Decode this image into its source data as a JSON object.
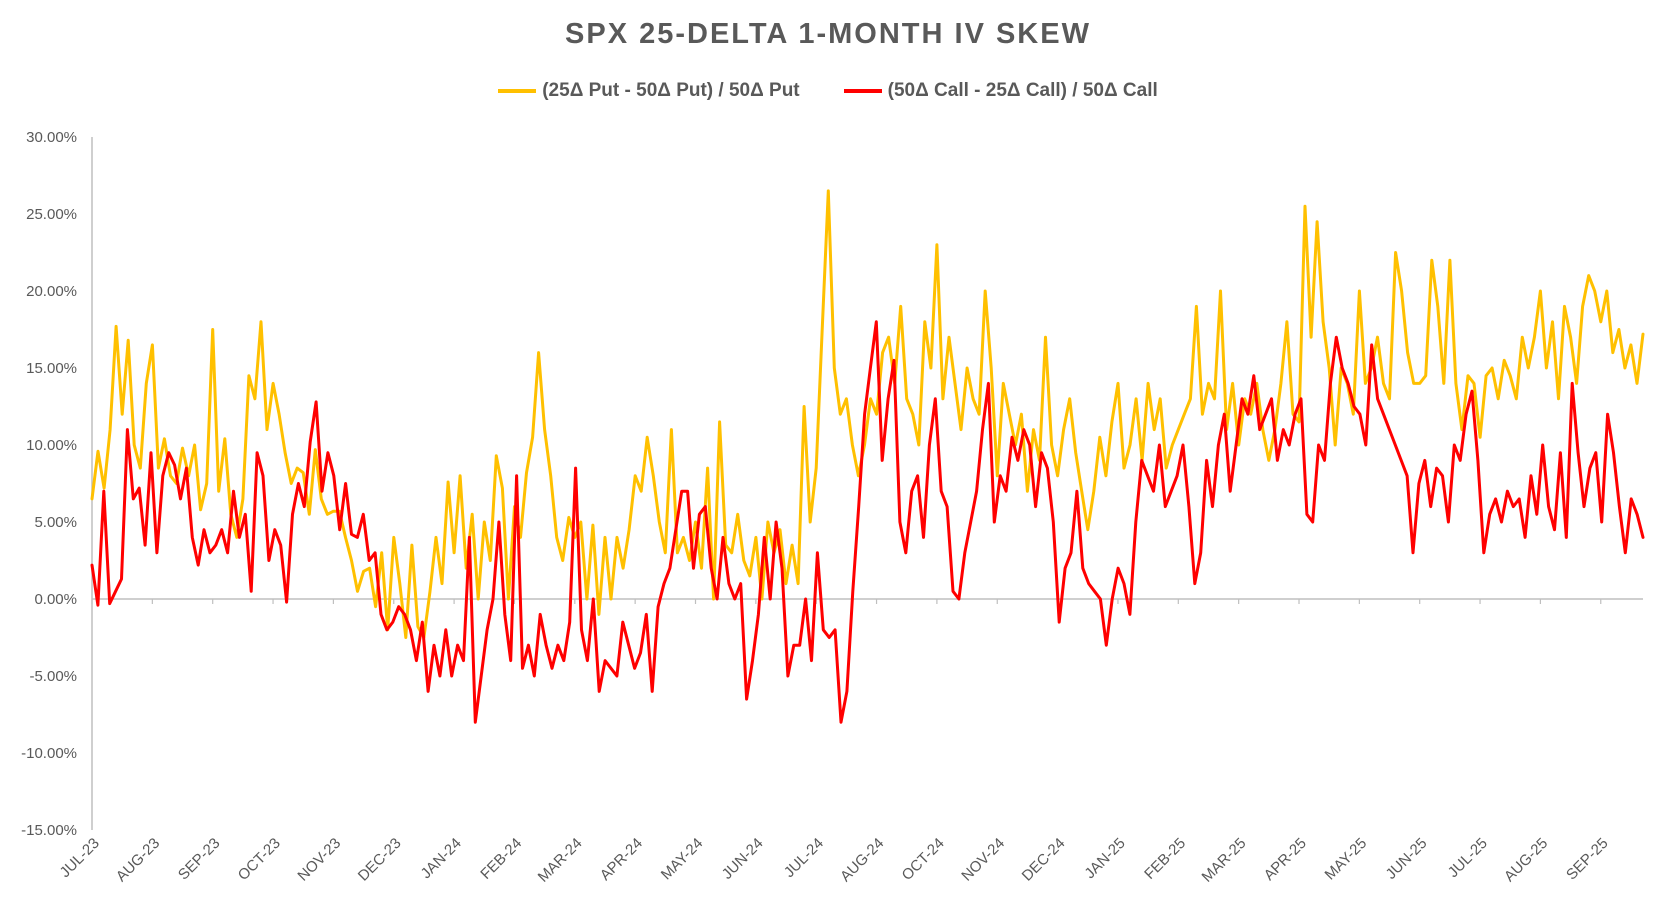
{
  "chart_data": {
    "type": "line",
    "title": "SPX 25-DELTA 1-MONTH IV SKEW",
    "xlabel": "",
    "ylabel": "",
    "ylim": [
      -0.15,
      0.3
    ],
    "yticks": [
      "30.00%",
      "25.00%",
      "20.00%",
      "15.00%",
      "10.00%",
      "5.00%",
      "0.00%",
      "-5.00%",
      "-10.00%",
      "-15.00%"
    ],
    "xticks": [
      "JUL-23",
      "AUG-23",
      "SEP-23",
      "OCT-23",
      "NOV-23",
      "DEC-23",
      "JAN-24",
      "FEB-24",
      "MAR-24",
      "APR-24",
      "MAY-24",
      "JUN-24",
      "JUL-24",
      "AUG-24",
      "OCT-24",
      "NOV-24",
      "DEC-24",
      "JAN-25",
      "FEB-25",
      "MAR-25",
      "APR-25",
      "MAY-25",
      "JUN-25",
      "JUL-25",
      "AUG-25",
      "SEP-25"
    ],
    "grid": false,
    "legend_position": "top-center",
    "series": [
      {
        "name": "(25Δ Put - 50Δ Put) / 50Δ Put",
        "color": "#FFC000",
        "values": [
          0.065,
          0.096,
          0.072,
          0.11,
          0.177,
          0.12,
          0.168,
          0.1,
          0.085,
          0.14,
          0.165,
          0.085,
          0.104,
          0.08,
          0.075,
          0.098,
          0.08,
          0.1,
          0.058,
          0.075,
          0.175,
          0.07,
          0.104,
          0.055,
          0.04,
          0.065,
          0.145,
          0.13,
          0.18,
          0.11,
          0.14,
          0.12,
          0.095,
          0.075,
          0.085,
          0.082,
          0.055,
          0.097,
          0.065,
          0.055,
          0.057,
          0.057,
          0.04,
          0.025,
          0.005,
          0.018,
          0.02,
          -0.005,
          0.03,
          -0.02,
          0.04,
          0.01,
          -0.025,
          0.035,
          -0.018,
          -0.025,
          0.005,
          0.04,
          0.01,
          0.076,
          0.03,
          0.08,
          0.02,
          0.055,
          0.0,
          0.05,
          0.025,
          0.093,
          0.072,
          0.0,
          0.06,
          0.04,
          0.082,
          0.105,
          0.16,
          0.11,
          0.08,
          0.04,
          0.025,
          0.053,
          0.04,
          0.05,
          0.0,
          0.048,
          -0.01,
          0.04,
          0.0,
          0.04,
          0.02,
          0.045,
          0.08,
          0.07,
          0.105,
          0.08,
          0.05,
          0.03,
          0.11,
          0.03,
          0.04,
          0.025,
          0.05,
          0.02,
          0.085,
          0.0,
          0.115,
          0.035,
          0.03,
          0.055,
          0.025,
          0.015,
          0.04,
          0.0,
          0.05,
          0.03,
          0.045,
          0.01,
          0.035,
          0.01,
          0.125,
          0.05,
          0.085,
          0.175,
          0.265,
          0.15,
          0.12,
          0.13,
          0.1,
          0.08,
          0.1,
          0.13,
          0.12,
          0.16,
          0.17,
          0.14,
          0.19,
          0.13,
          0.12,
          0.1,
          0.18,
          0.15,
          0.23,
          0.13,
          0.17,
          0.14,
          0.11,
          0.15,
          0.13,
          0.12,
          0.2,
          0.15,
          0.08,
          0.14,
          0.12,
          0.1,
          0.12,
          0.07,
          0.11,
          0.09,
          0.17,
          0.1,
          0.08,
          0.11,
          0.13,
          0.095,
          0.07,
          0.045,
          0.07,
          0.105,
          0.08,
          0.115,
          0.14,
          0.085,
          0.1,
          0.13,
          0.09,
          0.14,
          0.11,
          0.13,
          0.085,
          0.1,
          0.11,
          0.12,
          0.13,
          0.19,
          0.12,
          0.14,
          0.13,
          0.2,
          0.11,
          0.14,
          0.1,
          0.13,
          0.12,
          0.14,
          0.11,
          0.09,
          0.11,
          0.14,
          0.18,
          0.12,
          0.115,
          0.255,
          0.17,
          0.245,
          0.18,
          0.15,
          0.1,
          0.15,
          0.14,
          0.12,
          0.2,
          0.14,
          0.15,
          0.17,
          0.14,
          0.13,
          0.225,
          0.2,
          0.16,
          0.14,
          0.14,
          0.145,
          0.22,
          0.19,
          0.14,
          0.22,
          0.14,
          0.11,
          0.145,
          0.14,
          0.105,
          0.145,
          0.15,
          0.13,
          0.155,
          0.145,
          0.13,
          0.17,
          0.15,
          0.17,
          0.2,
          0.15,
          0.18,
          0.13,
          0.19,
          0.17,
          0.14,
          0.19,
          0.21,
          0.2,
          0.18,
          0.2,
          0.16,
          0.175,
          0.15,
          0.165,
          0.14,
          0.172
        ]
      },
      {
        "name": "(50Δ Call - 25Δ Call) / 50Δ Call",
        "color": "#FF0000",
        "values": [
          0.022,
          -0.004,
          0.07,
          -0.003,
          0.005,
          0.013,
          0.11,
          0.065,
          0.072,
          0.035,
          0.095,
          0.03,
          0.08,
          0.095,
          0.087,
          0.065,
          0.085,
          0.04,
          0.022,
          0.045,
          0.03,
          0.035,
          0.045,
          0.03,
          0.07,
          0.04,
          0.055,
          0.005,
          0.095,
          0.08,
          0.025,
          0.045,
          0.035,
          -0.002,
          0.055,
          0.075,
          0.06,
          0.102,
          0.128,
          0.07,
          0.095,
          0.08,
          0.045,
          0.075,
          0.042,
          0.04,
          0.055,
          0.025,
          0.03,
          -0.01,
          -0.02,
          -0.015,
          -0.005,
          -0.01,
          -0.02,
          -0.04,
          -0.015,
          -0.06,
          -0.03,
          -0.05,
          -0.02,
          -0.05,
          -0.03,
          -0.04,
          0.04,
          -0.08,
          -0.05,
          -0.02,
          0.0,
          0.05,
          -0.01,
          -0.04,
          0.08,
          -0.045,
          -0.03,
          -0.05,
          -0.01,
          -0.03,
          -0.045,
          -0.03,
          -0.04,
          -0.015,
          0.085,
          -0.02,
          -0.04,
          0.0,
          -0.06,
          -0.04,
          -0.045,
          -0.05,
          -0.015,
          -0.03,
          -0.045,
          -0.035,
          -0.01,
          -0.06,
          -0.005,
          0.01,
          0.02,
          0.045,
          0.07,
          0.07,
          0.02,
          0.055,
          0.06,
          0.02,
          0.0,
          0.04,
          0.01,
          0.0,
          0.01,
          -0.065,
          -0.04,
          -0.01,
          0.04,
          0.0,
          0.05,
          0.02,
          -0.05,
          -0.03,
          -0.03,
          0.0,
          -0.04,
          0.03,
          -0.02,
          -0.025,
          -0.02,
          -0.08,
          -0.06,
          0.005,
          0.06,
          0.12,
          0.15,
          0.18,
          0.09,
          0.13,
          0.155,
          0.05,
          0.03,
          0.07,
          0.08,
          0.04,
          0.1,
          0.13,
          0.07,
          0.06,
          0.005,
          0.0,
          0.03,
          0.05,
          0.07,
          0.11,
          0.14,
          0.05,
          0.08,
          0.07,
          0.105,
          0.09,
          0.11,
          0.1,
          0.06,
          0.095,
          0.085,
          0.05,
          -0.015,
          0.02,
          0.03,
          0.07,
          0.02,
          0.01,
          0.005,
          0.0,
          -0.03,
          0.0,
          0.02,
          0.01,
          -0.01,
          0.05,
          0.09,
          0.08,
          0.07,
          0.1,
          0.06,
          0.07,
          0.08,
          0.1,
          0.06,
          0.01,
          0.03,
          0.09,
          0.06,
          0.1,
          0.12,
          0.07,
          0.1,
          0.13,
          0.12,
          0.145,
          0.11,
          0.12,
          0.13,
          0.09,
          0.11,
          0.1,
          0.12,
          0.13,
          0.055,
          0.05,
          0.1,
          0.09,
          0.14,
          0.17,
          0.15,
          0.14,
          0.125,
          0.12,
          0.1,
          0.165,
          0.13,
          0.12,
          0.11,
          0.1,
          0.09,
          0.08,
          0.03,
          0.075,
          0.09,
          0.06,
          0.085,
          0.08,
          0.05,
          0.1,
          0.09,
          0.12,
          0.135,
          0.09,
          0.03,
          0.055,
          0.065,
          0.05,
          0.07,
          0.06,
          0.065,
          0.04,
          0.08,
          0.055,
          0.1,
          0.06,
          0.045,
          0.095,
          0.04,
          0.14,
          0.095,
          0.06,
          0.085,
          0.095,
          0.05,
          0.12,
          0.095,
          0.06,
          0.03,
          0.065,
          0.055,
          0.04
        ]
      }
    ]
  }
}
